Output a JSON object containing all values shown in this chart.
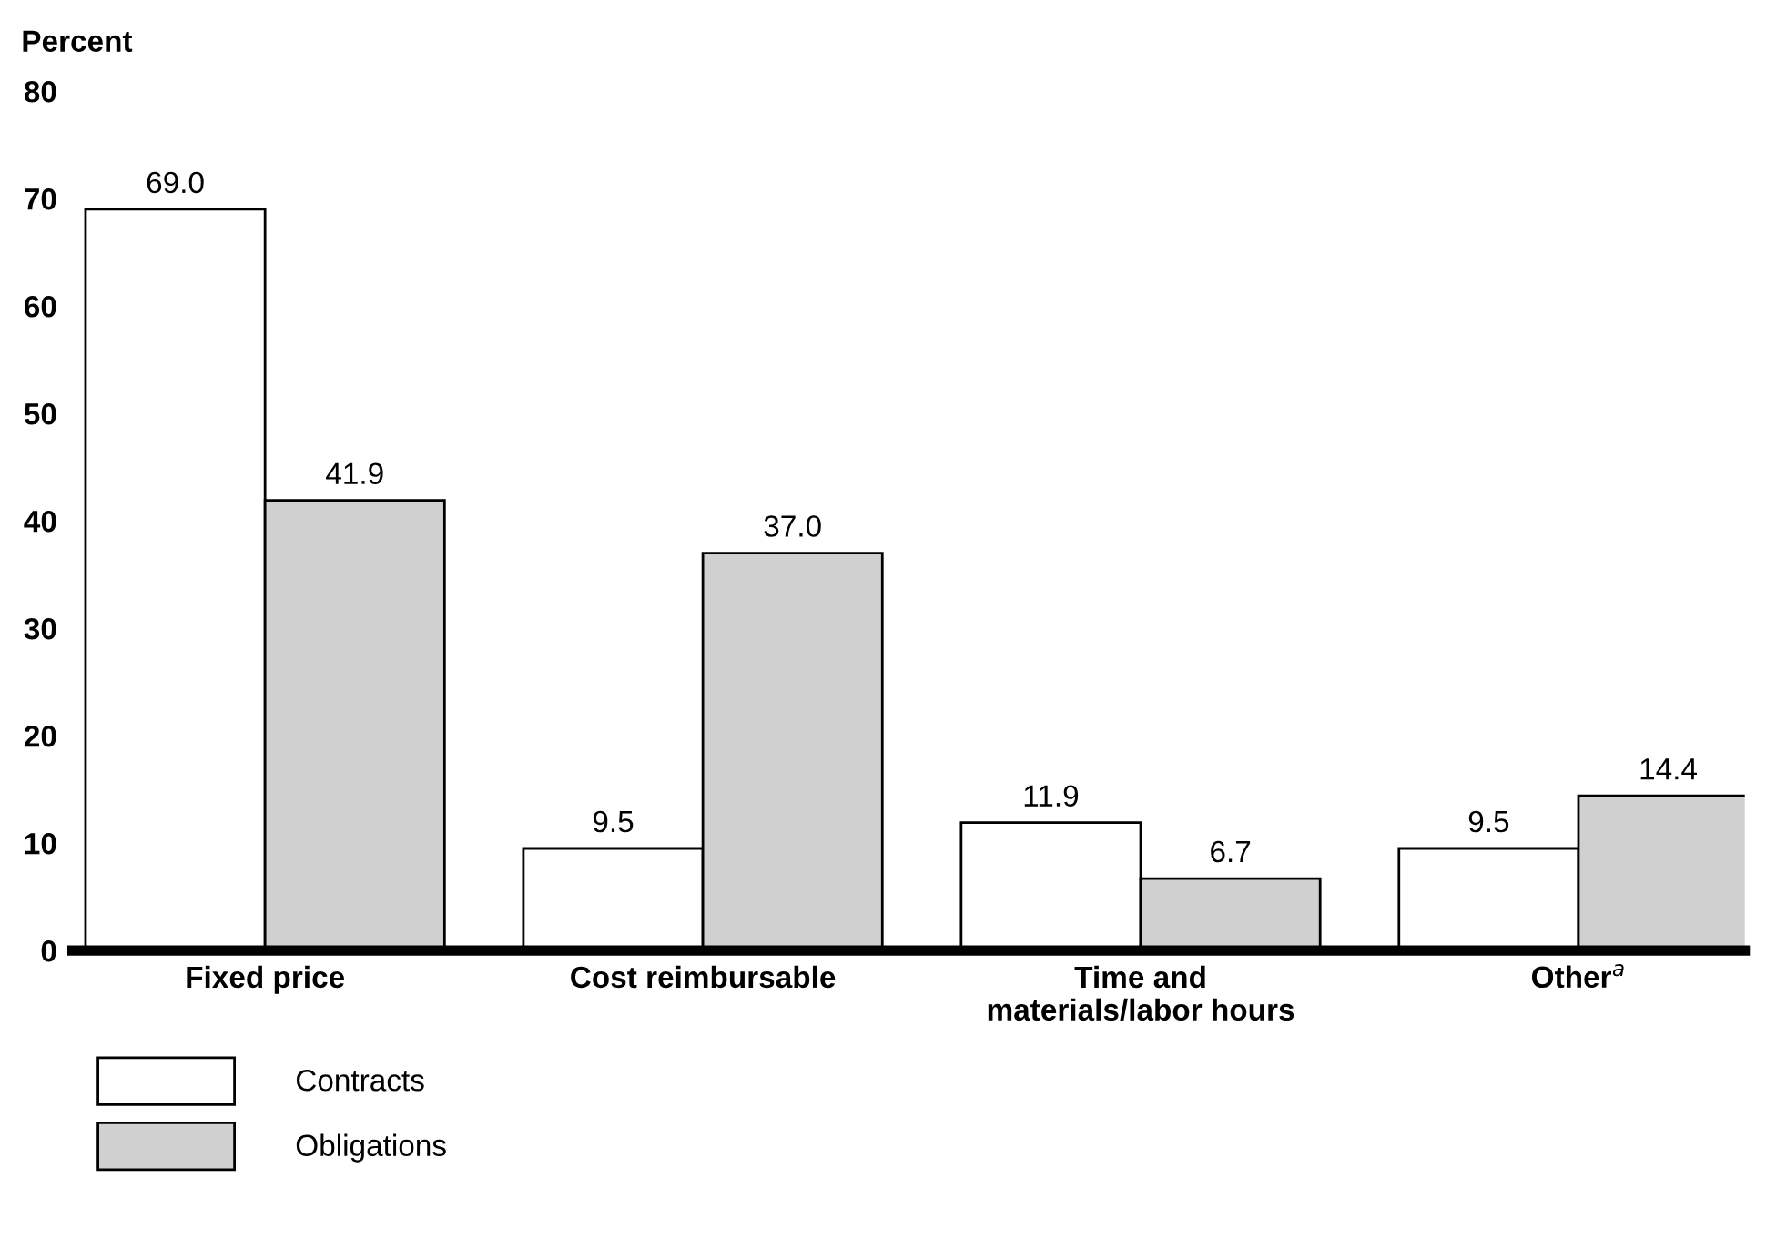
{
  "chart_data": {
    "type": "bar",
    "ylabel": "Percent",
    "categories": [
      "Fixed price",
      "Cost reimbursable",
      "Time and\nmaterials/labor hours",
      "Other$^{a}$"
    ],
    "series": [
      {
        "name": "Contracts",
        "color": "#ffffff",
        "values": [
          69.0,
          9.5,
          11.9,
          9.5
        ],
        "value_labels": [
          "69.0",
          "9.5",
          "11.9",
          "9.5"
        ]
      },
      {
        "name": "Obligations",
        "color": "#d0d0d0",
        "values": [
          41.9,
          37.0,
          6.7,
          14.4
        ],
        "value_labels": [
          "41.9",
          "37.0",
          "6.7",
          "14.4"
        ]
      }
    ],
    "ylim": [
      0,
      80
    ],
    "yticks": [
      0,
      10,
      20,
      30,
      40,
      50,
      60,
      70,
      80
    ],
    "grid": false,
    "legend": "bottom left"
  }
}
